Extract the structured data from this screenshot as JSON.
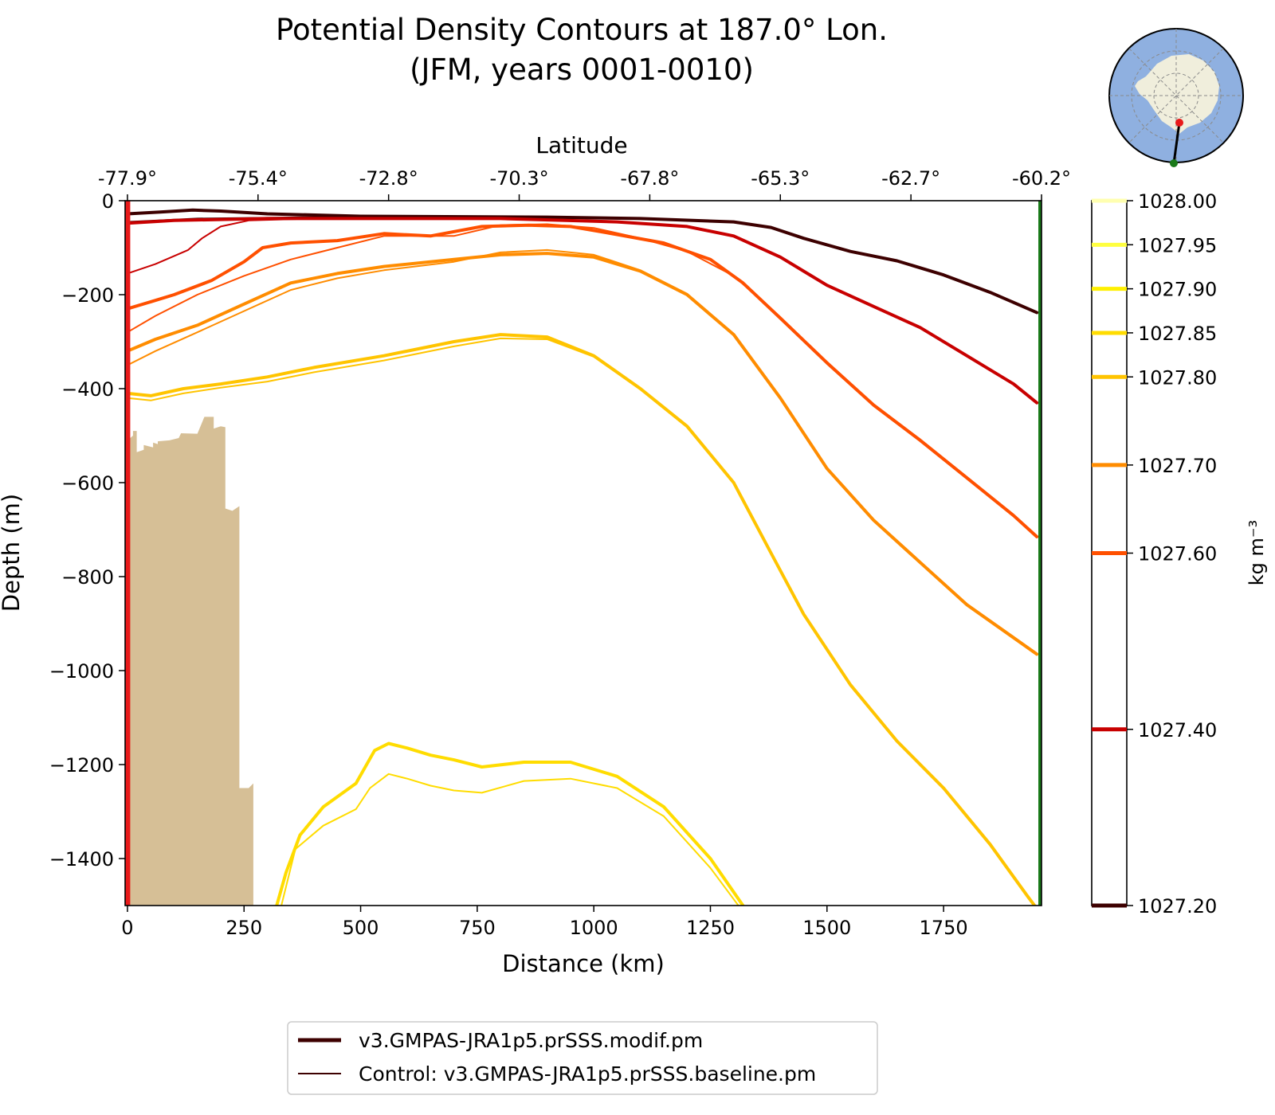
{
  "chart_data": {
    "type": "line",
    "title_line1": "Potential Density Contours at 187.0° Lon.",
    "title_line2": "(JFM, years 0001-0010)",
    "xlabel": "Distance (km)",
    "ylabel": "Depth (m)",
    "top_axis_label": "Latitude",
    "xlim": [
      -5,
      1960
    ],
    "ylim": [
      -1500,
      0
    ],
    "x_ticks": [
      0,
      250,
      500,
      750,
      1000,
      1250,
      1500,
      1750
    ],
    "x_tick_labels": [
      "0",
      "250",
      "500",
      "750",
      "1000",
      "1250",
      "1500",
      "1750"
    ],
    "y_ticks": [
      0,
      -200,
      -400,
      -600,
      -800,
      -1000,
      -1200,
      -1400
    ],
    "y_tick_labels": [
      "0",
      "−200",
      "−400",
      "−600",
      "−800",
      "−1000",
      "−1200",
      "−1400"
    ],
    "top_ticks": [
      0,
      280,
      560,
      840,
      1120,
      1400,
      1680,
      1960
    ],
    "top_tick_labels": [
      "-77.9°",
      "-75.4°",
      "-72.8°",
      "-70.3°",
      "-67.8°",
      "-65.3°",
      "-62.7°",
      "-60.2°"
    ],
    "colorbar": {
      "label": "kg m⁻³",
      "range": [
        1027.2,
        1028.0
      ],
      "levels": [
        1027.2,
        1027.4,
        1027.6,
        1027.7,
        1027.8,
        1027.85,
        1027.9,
        1027.95,
        1028.0
      ],
      "level_labels": [
        "1027.20",
        "1027.40",
        "1027.60",
        "1027.70",
        "1027.80",
        "1027.85",
        "1027.90",
        "1027.95",
        "1028.00"
      ],
      "level_colors": [
        "#3d0000",
        "#c80000",
        "#ff5000",
        "#ff8c00",
        "#ffc400",
        "#ffdc00",
        "#fff000",
        "#ffff40",
        "#ffffb0"
      ]
    },
    "legend": {
      "position": "bottom-center",
      "entries": [
        {
          "label": "v3.GMPAS-JRA1p5.prSSS.modif.pm",
          "style": "thick",
          "color": "#3d0000"
        },
        {
          "label": "Control: v3.GMPAS-JRA1p5.prSSS.baseline.pm",
          "style": "thin",
          "color": "#3d0000"
        }
      ]
    },
    "start_line_color": "#e81a1a",
    "end_line_color": "#1a7a1a",
    "bathymetry_color": "#d6bf96",
    "bathymetry": [
      [
        0,
        -1500
      ],
      [
        0,
        -510
      ],
      [
        12,
        -500
      ],
      [
        12,
        -490
      ],
      [
        20,
        -490
      ],
      [
        20,
        -535
      ],
      [
        35,
        -530
      ],
      [
        35,
        -520
      ],
      [
        55,
        -525
      ],
      [
        55,
        -515
      ],
      [
        65,
        -518
      ],
      [
        65,
        -512
      ],
      [
        90,
        -510
      ],
      [
        110,
        -505
      ],
      [
        115,
        -495
      ],
      [
        150,
        -496
      ],
      [
        165,
        -460
      ],
      [
        185,
        -460
      ],
      [
        185,
        -485
      ],
      [
        200,
        -480
      ],
      [
        210,
        -482
      ],
      [
        210,
        -655
      ],
      [
        225,
        -660
      ],
      [
        240,
        -650
      ],
      [
        240,
        -1250
      ],
      [
        260,
        -1250
      ],
      [
        270,
        -1240
      ],
      [
        270,
        -1500
      ]
    ],
    "series": [
      {
        "name": "1027.20 modif",
        "level": "1027.20",
        "run": "modif",
        "color": "#3d0000",
        "points": [
          [
            0,
            -28
          ],
          [
            70,
            -24
          ],
          [
            140,
            -20
          ],
          [
            200,
            -22
          ],
          [
            300,
            -28
          ],
          [
            500,
            -33
          ],
          [
            900,
            -35
          ],
          [
            1100,
            -38
          ],
          [
            1300,
            -45
          ],
          [
            1380,
            -57
          ],
          [
            1450,
            -80
          ],
          [
            1550,
            -108
          ],
          [
            1650,
            -128
          ],
          [
            1750,
            -158
          ],
          [
            1850,
            -195
          ],
          [
            1950,
            -238
          ]
        ]
      },
      {
        "name": "1027.20 control",
        "level": "1027.20",
        "run": "control",
        "color": "#3d0000",
        "points": [
          [
            0,
            -45
          ],
          [
            150,
            -38
          ],
          [
            400,
            -35
          ],
          [
            900,
            -35
          ],
          [
            1100,
            -38
          ],
          [
            1300,
            -45
          ],
          [
            1380,
            -57
          ],
          [
            1450,
            -80
          ],
          [
            1550,
            -108
          ],
          [
            1650,
            -128
          ],
          [
            1750,
            -158
          ],
          [
            1850,
            -195
          ],
          [
            1950,
            -238
          ]
        ]
      },
      {
        "name": "1027.40 modif",
        "level": "1027.40",
        "run": "modif",
        "color": "#c80000",
        "points": [
          [
            0,
            -48
          ],
          [
            100,
            -42
          ],
          [
            300,
            -38
          ],
          [
            800,
            -38
          ],
          [
            1050,
            -45
          ],
          [
            1200,
            -55
          ],
          [
            1300,
            -75
          ],
          [
            1400,
            -120
          ],
          [
            1500,
            -180
          ],
          [
            1600,
            -225
          ],
          [
            1700,
            -270
          ],
          [
            1800,
            -330
          ],
          [
            1900,
            -390
          ],
          [
            1950,
            -430
          ]
        ]
      },
      {
        "name": "1027.40 control",
        "level": "1027.40",
        "run": "control",
        "color": "#c80000",
        "points": [
          [
            0,
            -155
          ],
          [
            60,
            -135
          ],
          [
            130,
            -105
          ],
          [
            160,
            -80
          ],
          [
            200,
            -55
          ],
          [
            260,
            -42
          ],
          [
            400,
            -38
          ],
          [
            800,
            -38
          ],
          [
            1050,
            -45
          ],
          [
            1200,
            -55
          ],
          [
            1300,
            -75
          ],
          [
            1400,
            -120
          ],
          [
            1500,
            -180
          ],
          [
            1600,
            -225
          ],
          [
            1700,
            -270
          ],
          [
            1800,
            -330
          ],
          [
            1900,
            -390
          ],
          [
            1950,
            -430
          ]
        ]
      },
      {
        "name": "1027.60 modif",
        "level": "1027.60",
        "run": "modif",
        "color": "#ff5000",
        "points": [
          [
            0,
            -230
          ],
          [
            50,
            -215
          ],
          [
            100,
            -200
          ],
          [
            180,
            -170
          ],
          [
            250,
            -130
          ],
          [
            290,
            -100
          ],
          [
            350,
            -90
          ],
          [
            450,
            -85
          ],
          [
            550,
            -70
          ],
          [
            650,
            -75
          ],
          [
            760,
            -55
          ],
          [
            860,
            -52
          ],
          [
            950,
            -55
          ],
          [
            1050,
            -72
          ],
          [
            1150,
            -90
          ],
          [
            1250,
            -125
          ],
          [
            1320,
            -175
          ],
          [
            1400,
            -250
          ],
          [
            1500,
            -345
          ],
          [
            1600,
            -435
          ],
          [
            1700,
            -510
          ],
          [
            1800,
            -590
          ],
          [
            1900,
            -670
          ],
          [
            1950,
            -715
          ]
        ]
      },
      {
        "name": "1027.60 control",
        "level": "1027.60",
        "run": "control",
        "color": "#ff5000",
        "points": [
          [
            0,
            -280
          ],
          [
            60,
            -245
          ],
          [
            150,
            -200
          ],
          [
            250,
            -160
          ],
          [
            350,
            -125
          ],
          [
            450,
            -100
          ],
          [
            550,
            -75
          ],
          [
            700,
            -75
          ],
          [
            800,
            -52
          ],
          [
            900,
            -50
          ],
          [
            1000,
            -58
          ],
          [
            1100,
            -80
          ],
          [
            1200,
            -108
          ],
          [
            1300,
            -160
          ],
          [
            1400,
            -248
          ],
          [
            1500,
            -343
          ],
          [
            1600,
            -433
          ],
          [
            1700,
            -508
          ],
          [
            1800,
            -588
          ],
          [
            1900,
            -668
          ],
          [
            1950,
            -713
          ]
        ]
      },
      {
        "name": "1027.70 modif",
        "level": "1027.70",
        "run": "modif",
        "color": "#ff8c00",
        "points": [
          [
            0,
            -320
          ],
          [
            60,
            -295
          ],
          [
            150,
            -265
          ],
          [
            250,
            -220
          ],
          [
            350,
            -175
          ],
          [
            450,
            -155
          ],
          [
            550,
            -140
          ],
          [
            700,
            -125
          ],
          [
            800,
            -115
          ],
          [
            900,
            -112
          ],
          [
            1000,
            -120
          ],
          [
            1100,
            -150
          ],
          [
            1200,
            -200
          ],
          [
            1300,
            -285
          ],
          [
            1400,
            -420
          ],
          [
            1500,
            -570
          ],
          [
            1600,
            -680
          ],
          [
            1700,
            -770
          ],
          [
            1800,
            -860
          ],
          [
            1900,
            -930
          ],
          [
            1950,
            -965
          ]
        ]
      },
      {
        "name": "1027.70 control",
        "level": "1027.70",
        "run": "control",
        "color": "#ff8c00",
        "points": [
          [
            0,
            -350
          ],
          [
            60,
            -320
          ],
          [
            150,
            -280
          ],
          [
            250,
            -235
          ],
          [
            350,
            -190
          ],
          [
            450,
            -165
          ],
          [
            550,
            -148
          ],
          [
            700,
            -130
          ],
          [
            800,
            -110
          ],
          [
            900,
            -105
          ],
          [
            1000,
            -115
          ],
          [
            1100,
            -148
          ],
          [
            1200,
            -198
          ],
          [
            1300,
            -283
          ],
          [
            1400,
            -418
          ],
          [
            1500,
            -568
          ],
          [
            1600,
            -678
          ],
          [
            1700,
            -768
          ],
          [
            1800,
            -858
          ],
          [
            1900,
            -928
          ],
          [
            1950,
            -963
          ]
        ]
      },
      {
        "name": "1027.80 modif",
        "level": "1027.80",
        "run": "modif",
        "color": "#ffc400",
        "points": [
          [
            0,
            -410
          ],
          [
            50,
            -415
          ],
          [
            120,
            -400
          ],
          [
            200,
            -390
          ],
          [
            300,
            -375
          ],
          [
            400,
            -355
          ],
          [
            550,
            -330
          ],
          [
            700,
            -300
          ],
          [
            800,
            -285
          ],
          [
            900,
            -290
          ],
          [
            1000,
            -330
          ],
          [
            1100,
            -400
          ],
          [
            1200,
            -480
          ],
          [
            1300,
            -600
          ],
          [
            1380,
            -750
          ],
          [
            1450,
            -880
          ],
          [
            1550,
            -1030
          ],
          [
            1650,
            -1150
          ],
          [
            1750,
            -1250
          ],
          [
            1850,
            -1370
          ],
          [
            1930,
            -1480
          ],
          [
            1945,
            -1500
          ]
        ]
      },
      {
        "name": "1027.80 control",
        "level": "1027.80",
        "run": "control",
        "color": "#ffc400",
        "points": [
          [
            0,
            -420
          ],
          [
            50,
            -425
          ],
          [
            120,
            -410
          ],
          [
            200,
            -398
          ],
          [
            300,
            -385
          ],
          [
            400,
            -365
          ],
          [
            550,
            -340
          ],
          [
            700,
            -310
          ],
          [
            800,
            -293
          ],
          [
            900,
            -295
          ],
          [
            1000,
            -332
          ],
          [
            1100,
            -402
          ],
          [
            1200,
            -482
          ],
          [
            1300,
            -602
          ],
          [
            1380,
            -752
          ],
          [
            1450,
            -882
          ],
          [
            1550,
            -1032
          ],
          [
            1650,
            -1152
          ],
          [
            1750,
            -1252
          ],
          [
            1850,
            -1372
          ],
          [
            1930,
            -1482
          ],
          [
            1945,
            -1500
          ]
        ]
      },
      {
        "name": "1027.85 modif",
        "level": "1027.85",
        "run": "modif",
        "color": "#ffdc00",
        "points": [
          [
            320,
            -1500
          ],
          [
            340,
            -1430
          ],
          [
            370,
            -1350
          ],
          [
            420,
            -1290
          ],
          [
            490,
            -1240
          ],
          [
            530,
            -1170
          ],
          [
            560,
            -1155
          ],
          [
            600,
            -1165
          ],
          [
            650,
            -1180
          ],
          [
            700,
            -1190
          ],
          [
            760,
            -1205
          ],
          [
            850,
            -1195
          ],
          [
            950,
            -1195
          ],
          [
            1050,
            -1225
          ],
          [
            1150,
            -1290
          ],
          [
            1250,
            -1400
          ],
          [
            1320,
            -1500
          ]
        ]
      },
      {
        "name": "1027.85 control",
        "level": "1027.85",
        "run": "control",
        "color": "#ffdc00",
        "points": [
          [
            330,
            -1500
          ],
          [
            360,
            -1380
          ],
          [
            420,
            -1330
          ],
          [
            490,
            -1295
          ],
          [
            520,
            -1250
          ],
          [
            560,
            -1220
          ],
          [
            600,
            -1230
          ],
          [
            650,
            -1245
          ],
          [
            700,
            -1255
          ],
          [
            760,
            -1260
          ],
          [
            850,
            -1235
          ],
          [
            950,
            -1230
          ],
          [
            1050,
            -1250
          ],
          [
            1150,
            -1310
          ],
          [
            1250,
            -1420
          ],
          [
            1310,
            -1500
          ]
        ]
      }
    ],
    "inset_map": {
      "description_free": true,
      "ocean_color": "#8fb0e0",
      "land_color": "#f0eedc",
      "start_marker_color": "#e81a1a",
      "end_marker_color": "#1a7a1a"
    }
  }
}
